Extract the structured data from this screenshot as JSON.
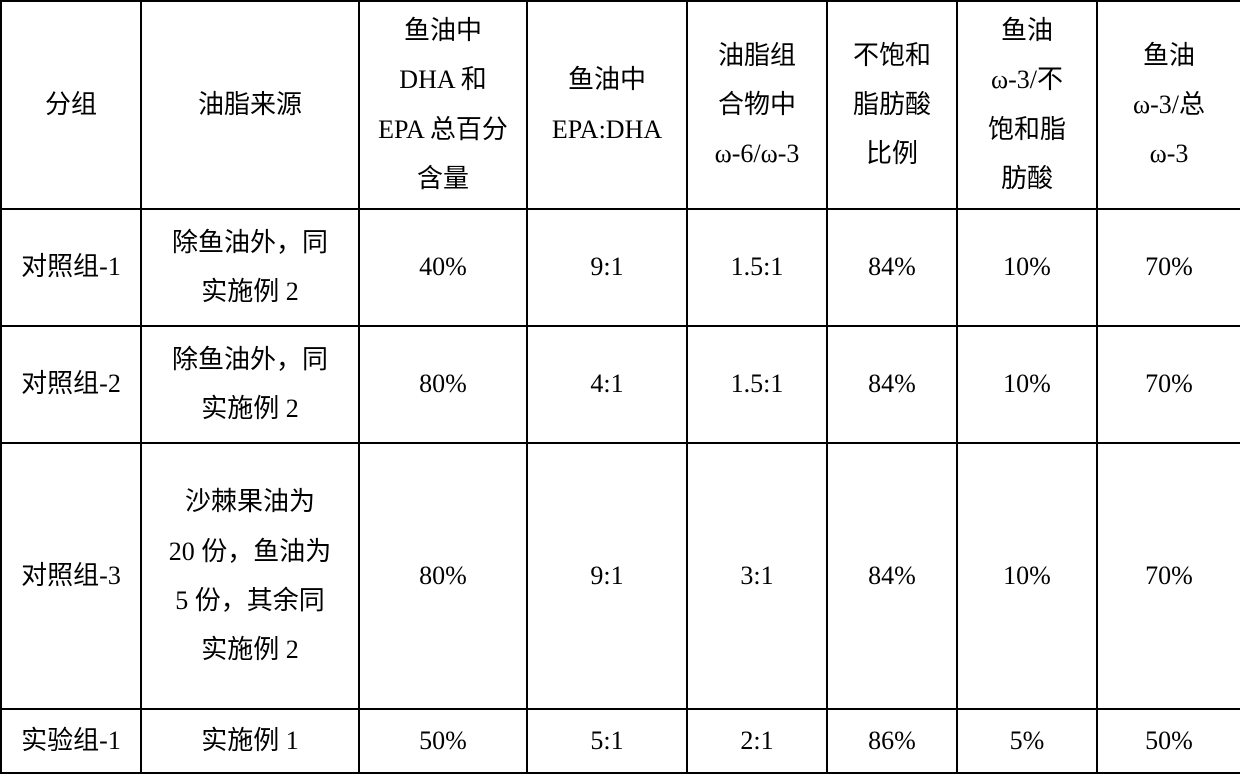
{
  "table": {
    "columns": [
      "分组",
      "油脂来源",
      "鱼油中\nDHA 和\nEPA 总百分\n含量",
      "鱼油中\nEPA:DHA",
      "油脂组\n合物中\nω-6/ω-3",
      "不饱和\n脂肪酸\n比例",
      "鱼油\nω-3/不\n饱和脂\n肪酸",
      "鱼油\nω-3/总\nω-3"
    ],
    "rows": [
      {
        "group": "对照组-1",
        "source": "除鱼油外，同\n实施例 2",
        "dha_epa_pct": "40%",
        "epa_dha": "9:1",
        "w6_w3": "1.5:1",
        "unsat_pct": "84%",
        "w3_unsat": "10%",
        "w3_total": "70%"
      },
      {
        "group": "对照组-2",
        "source": "除鱼油外，同\n实施例 2",
        "dha_epa_pct": "80%",
        "epa_dha": "4:1",
        "w6_w3": "1.5:1",
        "unsat_pct": "84%",
        "w3_unsat": "10%",
        "w3_total": "70%"
      },
      {
        "group": "对照组-3",
        "source": "沙棘果油为\n20 份，鱼油为\n5 份，其余同\n实施例 2",
        "dha_epa_pct": "80%",
        "epa_dha": "9:1",
        "w6_w3": "3:1",
        "unsat_pct": "84%",
        "w3_unsat": "10%",
        "w3_total": "70%"
      },
      {
        "group": "实验组-1",
        "source": "实施例 1",
        "dha_epa_pct": "50%",
        "epa_dha": "5:1",
        "w6_w3": "2:1",
        "unsat_pct": "86%",
        "w3_unsat": "5%",
        "w3_total": "50%"
      }
    ],
    "border_color": "#000000",
    "background_color": "#ffffff",
    "text_color": "#000000",
    "font_size_pt": 20
  }
}
